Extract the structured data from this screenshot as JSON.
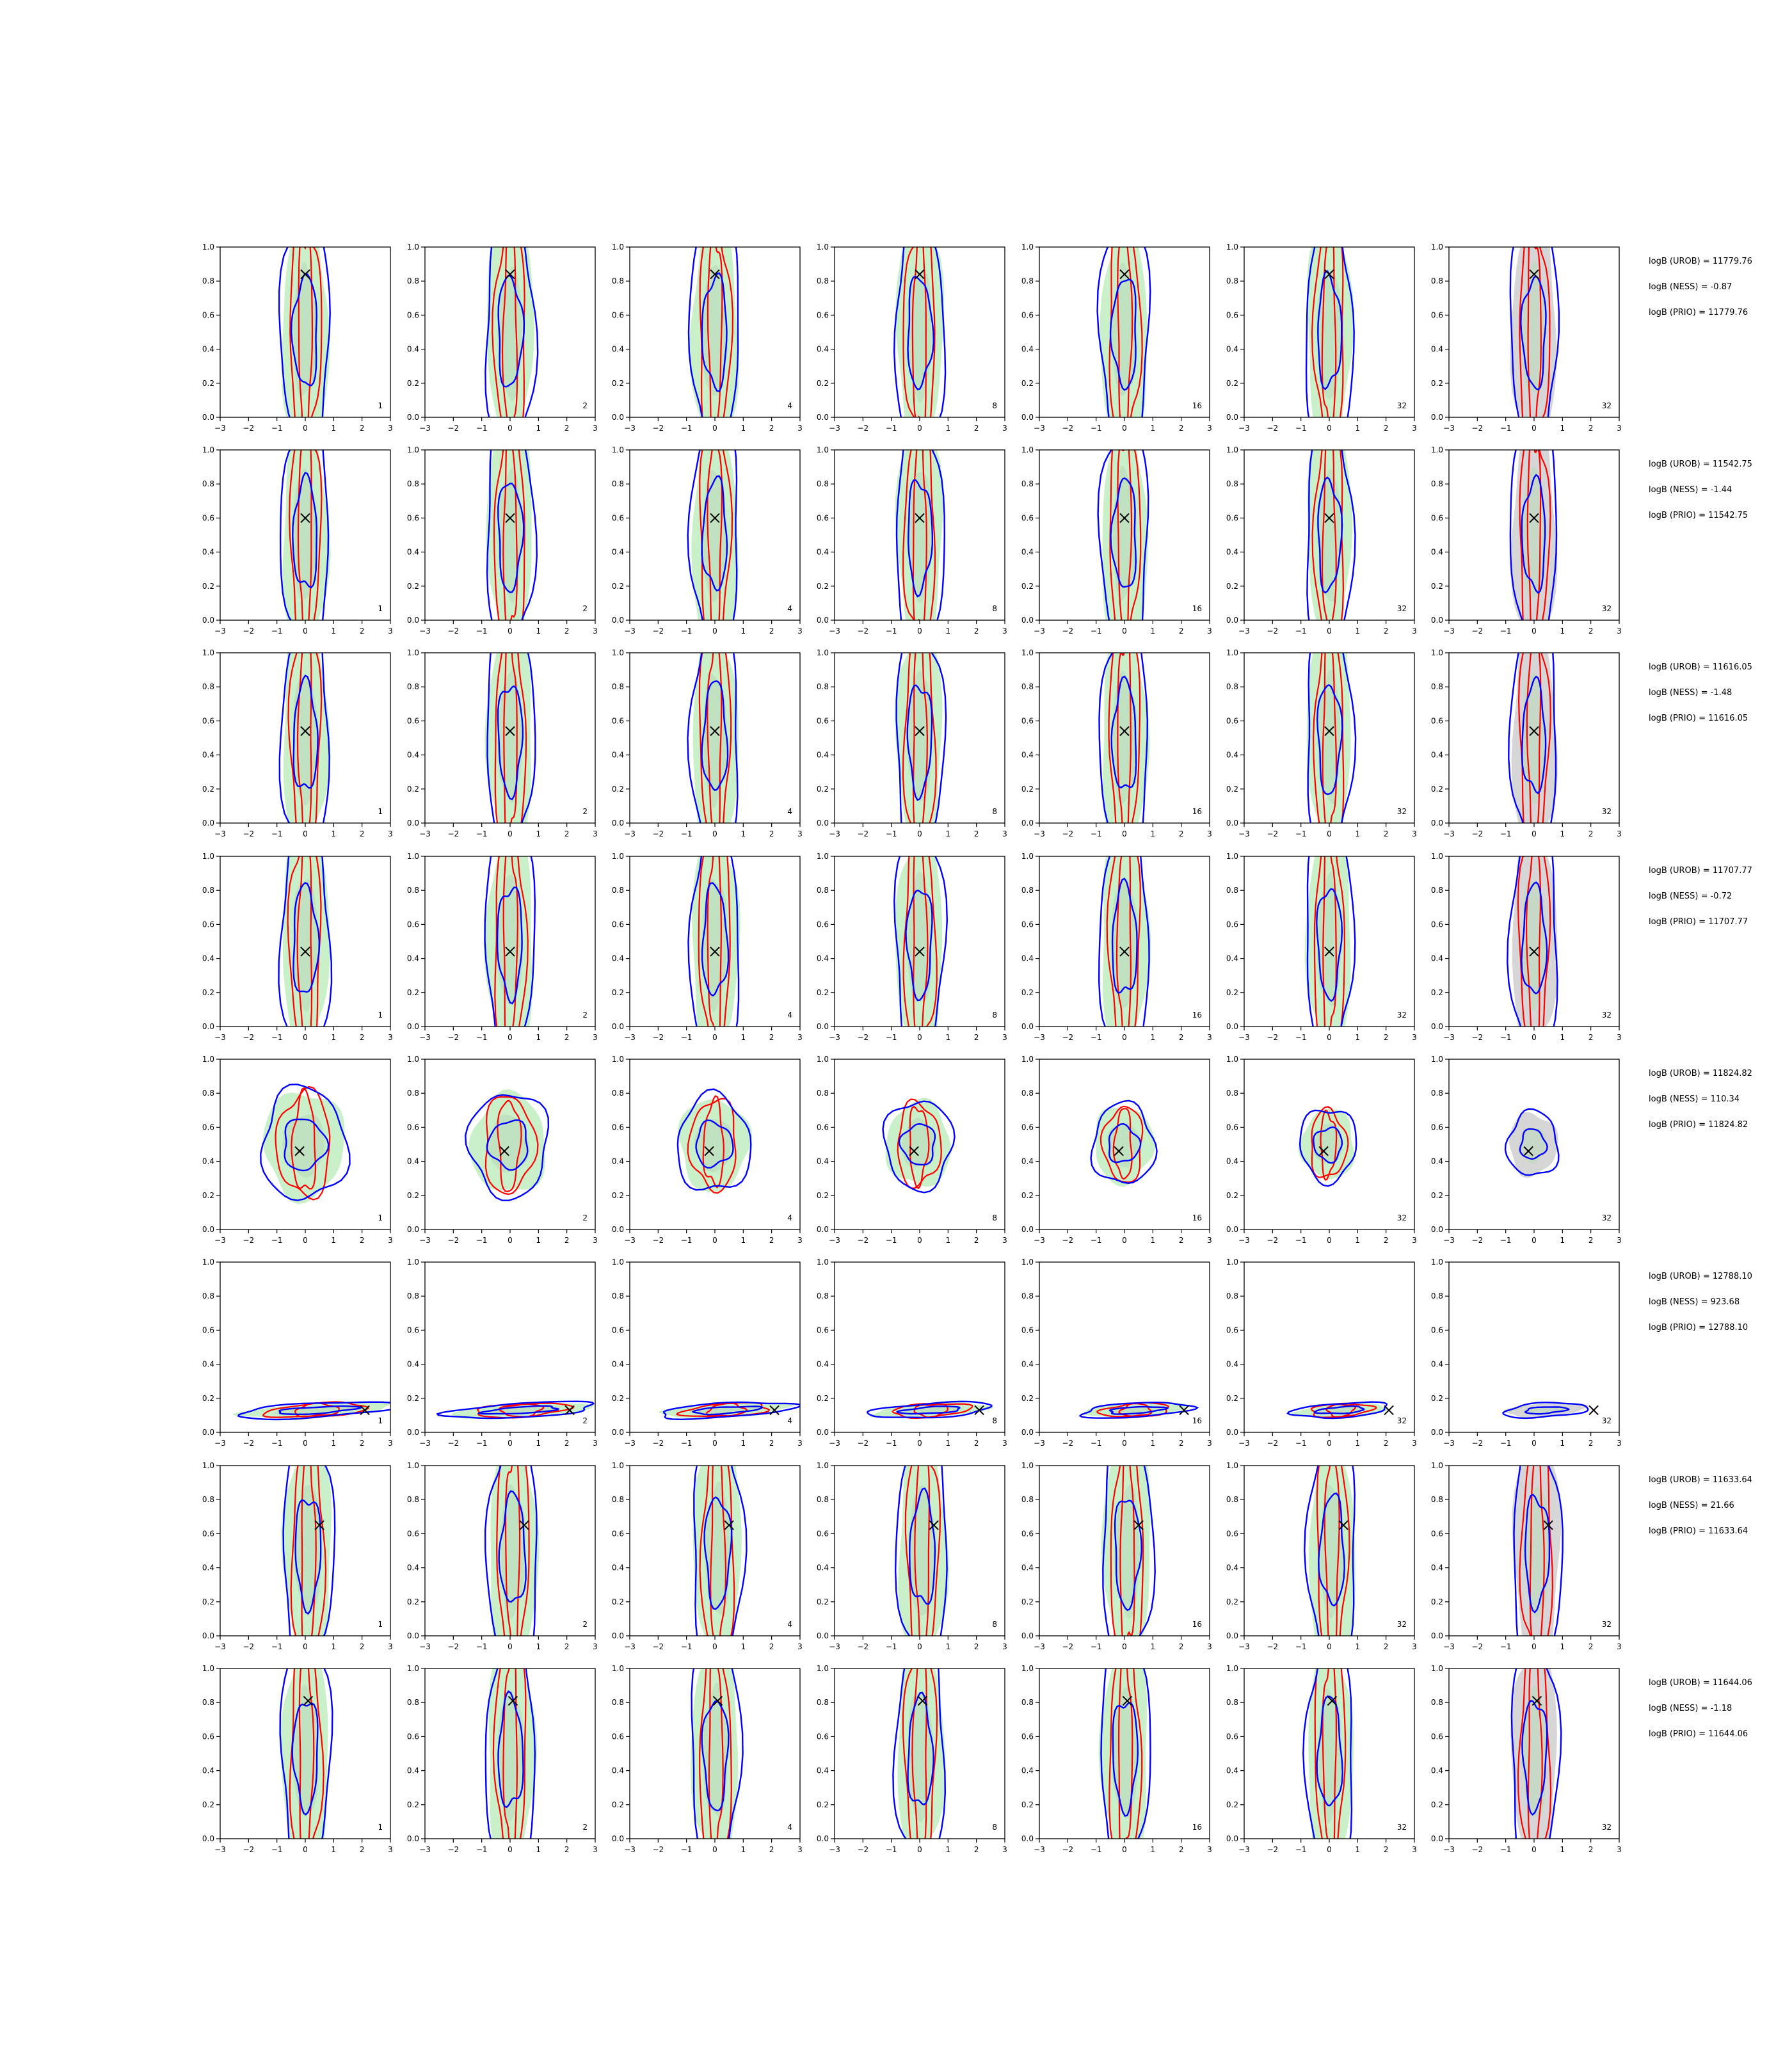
{
  "chart_data": {
    "type": "contour-grid",
    "xlim": [
      -3,
      3
    ],
    "ylim": [
      0,
      1
    ],
    "xticks": [
      "−3",
      "−2",
      "−1",
      "0",
      "1",
      "2",
      "3"
    ],
    "yticks": [
      "0.0",
      "0.2",
      "0.4",
      "0.6",
      "0.8",
      "1.0"
    ],
    "column_labels": [
      "1",
      "2",
      "4",
      "8",
      "16",
      "32",
      "32"
    ],
    "colors": {
      "green_fill": "#c9f0c9",
      "grey_fill": "#d6d6d6",
      "red": "#ff0000",
      "blue": "#0000ff",
      "marker": "#000000",
      "axes": "#000000"
    },
    "rows": [
      {
        "true_point": [
          0.0,
          0.84
        ],
        "shape": "vertical",
        "spread": 0.35,
        "stats": [
          "logB (UROB) = 11779.76",
          "logB (NESS) = -0.87",
          "logB (PRIO) = 11779.76"
        ]
      },
      {
        "true_point": [
          0.0,
          0.6
        ],
        "shape": "vertical",
        "spread": 0.3,
        "stats": [
          "logB (UROB) = 11542.75",
          "logB (NESS) = -1.44",
          "logB (PRIO) = 11542.75"
        ]
      },
      {
        "true_point": [
          0.0,
          0.54
        ],
        "shape": "vertical",
        "spread": 0.3,
        "stats": [
          "logB (UROB) = 11616.05",
          "logB (NESS) = -1.48",
          "logB (PRIO) = 11616.05"
        ]
      },
      {
        "true_point": [
          0.0,
          0.44
        ],
        "shape": "vertical",
        "spread": 0.35,
        "stats": [
          "logB (UROB) = 11707.77",
          "logB (NESS) = -0.72",
          "logB (PRIO) = 11707.77"
        ]
      },
      {
        "true_point": [
          -0.2,
          0.46
        ],
        "shape": "blob",
        "spread": 0.6,
        "stats": [
          "logB (UROB) = 11824.82",
          "logB (NESS) = 110.34",
          "logB (PRIO) = 11824.82"
        ]
      },
      {
        "true_point": [
          2.1,
          0.13
        ],
        "shape": "diagonal",
        "spread": 0.3,
        "stats": [
          "logB (UROB) = 12788.10",
          "logB (NESS) = 923.68",
          "logB (PRIO) = 12788.10"
        ]
      },
      {
        "true_point": [
          0.5,
          0.65
        ],
        "shape": "vertical",
        "spread": 0.4,
        "stats": [
          "logB (UROB) = 11633.64",
          "logB (NESS) = 21.66",
          "logB (PRIO) = 11633.64"
        ]
      },
      {
        "true_point": [
          0.1,
          0.81
        ],
        "shape": "vertical",
        "spread": 0.35,
        "stats": [
          "logB (UROB) = 11644.06",
          "logB (NESS) = -1.18",
          "logB (PRIO) = 11644.06"
        ]
      }
    ]
  }
}
